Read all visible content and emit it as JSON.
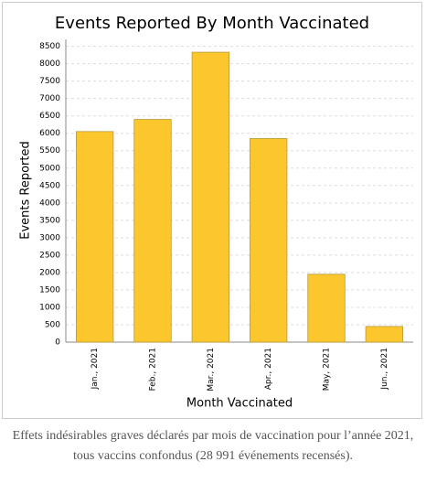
{
  "chart_data": {
    "type": "bar",
    "title": "Events Reported By Month Vaccinated",
    "x_label": "Month Vaccinated",
    "y_label": "Events Reported",
    "categories": [
      "Jan., 2021",
      "Feb., 2021",
      "Mar., 2021",
      "Apr., 2021",
      "May, 2021",
      "Jun., 2021"
    ],
    "values": [
      6050,
      6400,
      8330,
      5850,
      1950,
      450
    ],
    "color": "#fcc72c",
    "ylim": [
      0,
      8700
    ],
    "yticks": [
      0,
      500,
      1000,
      1500,
      2000,
      2500,
      3000,
      3500,
      4000,
      4500,
      5000,
      5500,
      6000,
      6500,
      7000,
      7500,
      8000,
      8500
    ],
    "grid": true
  },
  "caption": "Effets indésirables graves déclarés par mois de vaccination pour l’année 2021, tous vaccins confondus (28 991 événements recensés)."
}
